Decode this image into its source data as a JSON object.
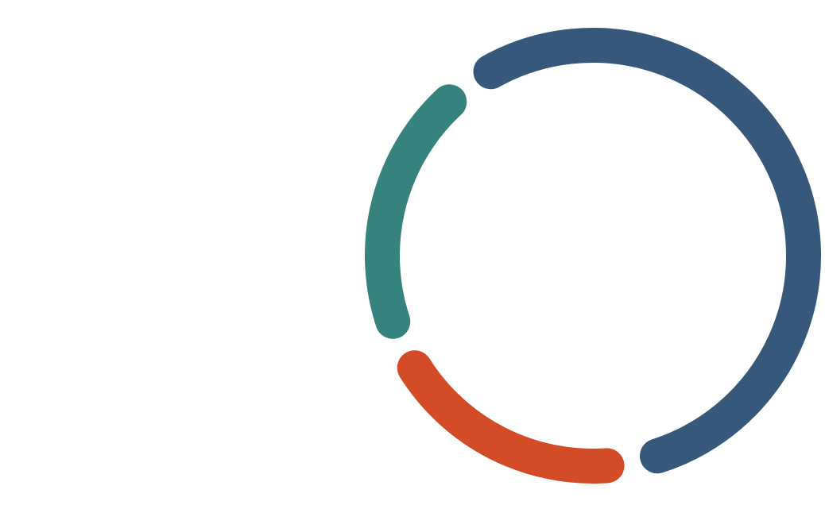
{
  "chart_data": {
    "type": "donut",
    "values": [
      57,
      21,
      22
    ],
    "colors": [
      "#36587a",
      "#d34b27",
      "#36827c"
    ]
  }
}
